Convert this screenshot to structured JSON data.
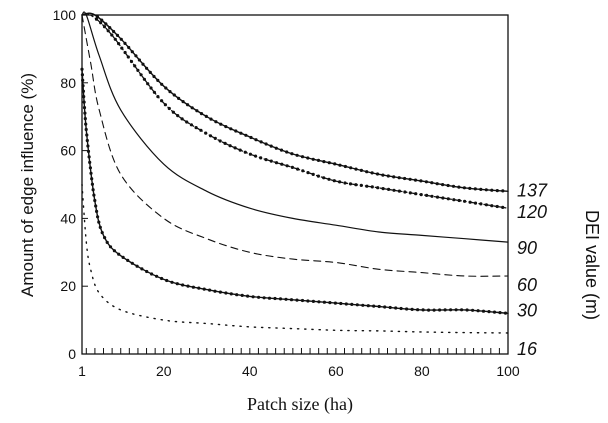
{
  "chart_data": {
    "type": "line",
    "xlabel": "Patch size (ha)",
    "ylabel": "Amount of edge influence (%)",
    "right_label": "DEI value (m)",
    "xlim": [
      1,
      100
    ],
    "ylim": [
      0,
      100
    ],
    "x_ticks": [
      "1",
      "20",
      "40",
      "60",
      "80",
      "100"
    ],
    "x_tick_values": [
      1,
      20,
      40,
      60,
      80,
      100
    ],
    "y_ticks": [
      "0",
      "20",
      "40",
      "60",
      "80",
      "100"
    ],
    "y_tick_values": [
      0,
      20,
      40,
      60,
      80,
      100
    ],
    "grid": false,
    "series": [
      {
        "name": "137",
        "style": "solid-dots",
        "x": [
          1,
          4,
          10,
          20,
          30,
          40,
          50,
          60,
          70,
          80,
          90,
          100
        ],
        "values": [
          100,
          100,
          93,
          79,
          70,
          64,
          59,
          56,
          53,
          51,
          49,
          48
        ]
      },
      {
        "name": "120",
        "style": "dash-dot-dots",
        "x": [
          1,
          3,
          8,
          20,
          30,
          40,
          50,
          60,
          70,
          80,
          90,
          100
        ],
        "values": [
          100,
          100,
          94,
          74,
          65,
          59,
          55,
          51,
          49,
          47,
          45,
          43
        ]
      },
      {
        "name": "90",
        "style": "solid",
        "x": [
          1,
          2,
          5,
          10,
          20,
          30,
          40,
          50,
          60,
          70,
          80,
          90,
          100
        ],
        "values": [
          100,
          100,
          88,
          72,
          56,
          48,
          43,
          40,
          38,
          36,
          35,
          34,
          33
        ]
      },
      {
        "name": "60",
        "style": "dashed",
        "x": [
          1,
          3,
          5,
          10,
          20,
          30,
          40,
          50,
          60,
          70,
          80,
          90,
          100
        ],
        "values": [
          100,
          86,
          72,
          53,
          40,
          34,
          30,
          28,
          27,
          25,
          24,
          23,
          23
        ]
      },
      {
        "name": "30",
        "style": "solid-dots",
        "x": [
          1,
          2,
          4,
          6,
          10,
          20,
          30,
          40,
          50,
          60,
          70,
          80,
          90,
          100
        ],
        "values": [
          84,
          66,
          45,
          35,
          29,
          22,
          19,
          17,
          16,
          15,
          14,
          13,
          13,
          12
        ]
      },
      {
        "name": "16",
        "style": "dotted",
        "x": [
          1,
          2,
          3,
          5,
          10,
          20,
          30,
          40,
          50,
          60,
          70,
          80,
          90,
          100
        ],
        "values": [
          50,
          33,
          25,
          18,
          13,
          10,
          9,
          8,
          7.5,
          7,
          6.8,
          6.5,
          6.3,
          6.2
        ]
      }
    ]
  }
}
